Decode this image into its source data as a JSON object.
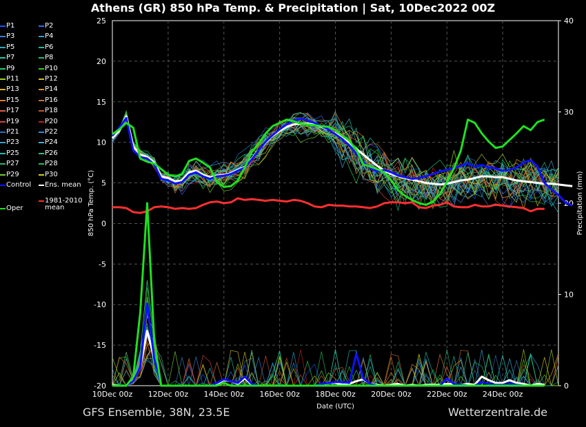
{
  "title": "Athens  (GR)  850 hPa Temp. & Precipitation | Sat, 10Dec2022 00Z",
  "footer": {
    "left": "GFS Ensemble, 38N, 23.5E",
    "right": "Wetterzentrale.de"
  },
  "legend": [
    {
      "label": "P1",
      "color": "#1f4fff"
    },
    {
      "label": "P2",
      "color": "#2a6bff"
    },
    {
      "label": "P3",
      "color": "#3a7fd0"
    },
    {
      "label": "P4",
      "color": "#2fa0d8"
    },
    {
      "label": "P5",
      "color": "#22b0c0"
    },
    {
      "label": "P6",
      "color": "#1fc0a0"
    },
    {
      "label": "P7",
      "color": "#20c8b0"
    },
    {
      "label": "P8",
      "color": "#18c080"
    },
    {
      "label": "P9",
      "color": "#20d070"
    },
    {
      "label": "P10",
      "color": "#30d020"
    },
    {
      "label": "P11",
      "color": "#a0d020"
    },
    {
      "label": "P12",
      "color": "#d0c020"
    },
    {
      "label": "P13",
      "color": "#e0b020"
    },
    {
      "label": "P14",
      "color": "#e09020"
    },
    {
      "label": "P15",
      "color": "#e08030"
    },
    {
      "label": "P16",
      "color": "#d07030"
    },
    {
      "label": "P17",
      "color": "#e06040"
    },
    {
      "label": "P18",
      "color": "#d05030"
    },
    {
      "label": "P19",
      "color": "#e04040"
    },
    {
      "label": "P20",
      "color": "#c02020"
    },
    {
      "label": "P21",
      "color": "#3070c0"
    },
    {
      "label": "P22",
      "color": "#3090e0"
    },
    {
      "label": "P23",
      "color": "#40a0d0"
    },
    {
      "label": "P24",
      "color": "#40b0e0"
    },
    {
      "label": "P25",
      "color": "#20c0b0"
    },
    {
      "label": "P26",
      "color": "#30c090"
    },
    {
      "label": "P27",
      "color": "#30b070"
    },
    {
      "label": "P28",
      "color": "#20c060"
    },
    {
      "label": "P29",
      "color": "#70d030"
    },
    {
      "label": "P30",
      "color": "#d0d020"
    },
    {
      "label": "Control",
      "color": "#1010ff"
    },
    {
      "label": "Ens. mean",
      "color": "#ffffff"
    },
    {
      "label": "Oper",
      "color": "#20e020"
    },
    {
      "label": "1981-2010\nmean",
      "color": "#ff3030"
    }
  ],
  "chart_data": {
    "type": "line",
    "ylabel": "850 hPa Temp. (°C)",
    "y2label": "Precipitation (mm)",
    "xlabel": "Date (UTC)",
    "ylim": [
      -20,
      25
    ],
    "y2lim": [
      0,
      40
    ],
    "yticks": [
      -20,
      -15,
      -10,
      -5,
      0,
      5,
      10,
      15,
      20,
      25
    ],
    "y2ticks": [
      0,
      10,
      20,
      30,
      40
    ],
    "xticks": [
      "10Dec 00z",
      "12Dec 00z",
      "14Dec 00z",
      "16Dec 00z",
      "18Dec 00z",
      "20Dec 00z",
      "22Dec 00z",
      "24Dec 00z"
    ],
    "x_hours_per_step": 6,
    "grid": true,
    "series_temp": [
      {
        "name": "Ens. mean",
        "color": "#ffffff",
        "width": 3,
        "values": [
          10.5,
          11.5,
          13.2,
          9.5,
          8.5,
          8.2,
          7.5,
          5.8,
          5.6,
          5.2,
          5.3,
          6.3,
          6.5,
          6.0,
          5.7,
          5.9,
          6.0,
          6.2,
          6.6,
          7.0,
          8.0,
          9.0,
          10.0,
          10.8,
          11.4,
          11.9,
          12.2,
          12.3,
          12.3,
          12.2,
          11.9,
          11.6,
          11.1,
          10.6,
          10.0,
          9.2,
          8.5,
          7.8,
          7.1,
          6.5,
          6.1,
          5.8,
          5.6,
          5.4,
          5.2,
          5.0,
          4.9,
          4.8,
          4.9,
          5.1,
          5.3,
          5.4,
          5.6,
          5.8,
          5.8,
          5.7,
          5.7,
          5.5,
          5.3,
          5.2,
          5.1,
          5.0,
          4.9,
          4.9,
          4.8,
          4.7,
          4.6
        ]
      },
      {
        "name": "Control",
        "color": "#1010ff",
        "width": 3,
        "values": [
          10.8,
          11.8,
          13.0,
          9.0,
          8.2,
          8.0,
          7.3,
          5.5,
          5.3,
          4.9,
          5.1,
          6.0,
          6.3,
          5.8,
          5.5,
          5.8,
          5.9,
          6.1,
          6.5,
          6.9,
          7.9,
          9.0,
          10.1,
          10.9,
          11.6,
          12.2,
          12.7,
          12.9,
          12.7,
          12.4,
          12.0,
          11.6,
          11.0,
          10.4,
          9.6,
          8.6,
          7.6,
          6.8,
          6.4,
          6.6,
          6.3,
          5.9,
          5.7,
          5.5,
          5.6,
          5.8,
          6.1,
          6.4,
          6.6,
          6.8,
          7.1,
          7.4,
          7.0,
          7.2,
          6.9,
          6.8,
          6.5,
          6.6,
          6.9,
          7.5,
          7.8,
          7.0,
          5.0,
          4.2,
          3.5,
          2.6,
          2.2
        ]
      },
      {
        "name": "Oper",
        "color": "#20e020",
        "width": 3,
        "values": [
          11.0,
          11.6,
          12.4,
          11.8,
          8.0,
          7.6,
          7.4,
          6.7,
          6.0,
          5.8,
          6.1,
          7.7,
          8.0,
          7.5,
          6.9,
          5.1,
          4.5,
          4.6,
          5.3,
          6.9,
          8.8,
          9.9,
          11.1,
          12.0,
          12.4,
          12.8,
          12.6,
          12.3,
          12.2,
          12.1,
          12.0,
          11.9,
          11.5,
          10.8,
          10.2,
          9.1,
          7.3,
          7.0,
          6.7,
          6.3,
          5.3,
          4.1,
          3.4,
          2.9,
          2.5,
          2.3,
          2.7,
          3.6,
          5.1,
          6.8,
          9.0,
          12.8,
          12.4,
          11.1,
          10.1,
          9.3,
          9.5,
          10.3,
          11.1,
          12.0,
          11.5,
          12.5,
          12.8
        ]
      },
      {
        "name": "1981-2010 mean",
        "color": "#ff3030",
        "width": 3,
        "values": [
          2.0,
          2.0,
          1.9,
          1.4,
          1.3,
          1.5,
          2.0,
          2.1,
          2.0,
          1.8,
          1.9,
          1.8,
          1.9,
          2.3,
          2.6,
          2.7,
          2.5,
          2.6,
          3.1,
          2.9,
          3.0,
          2.9,
          2.8,
          2.9,
          2.8,
          2.7,
          2.9,
          2.8,
          2.5,
          2.1,
          2.0,
          2.3,
          2.2,
          2.2,
          2.1,
          2.1,
          2.0,
          1.9,
          2.1,
          2.5,
          2.6,
          2.6,
          2.5,
          2.6,
          2.0,
          1.9,
          2.2,
          2.3,
          2.6,
          2.1,
          2.0,
          2.0,
          2.3,
          2.1,
          2.1,
          2.3,
          2.2,
          2.1,
          2.0,
          1.9,
          1.5,
          1.8,
          1.8
        ]
      }
    ],
    "series_precip": [
      {
        "name": "Ens. mean",
        "color": "#ffffff",
        "width": 3,
        "values": [
          0.1,
          0,
          0,
          0.5,
          2,
          6,
          3,
          0,
          0,
          0,
          0,
          0,
          0,
          0,
          0,
          0.2,
          0.6,
          0.5,
          0.2,
          0.8,
          0.1,
          0,
          0,
          0,
          0,
          0,
          0,
          0,
          0,
          0,
          0.1,
          0.3,
          0.3,
          0.1,
          0.2,
          0.5,
          0.7,
          0.2,
          0.1,
          0,
          0.1,
          0.2,
          0,
          0.1,
          0,
          0.1,
          0.1,
          0.1,
          0.2,
          0.2,
          0.1,
          0.2,
          0.1,
          1.0,
          0.6,
          0.3,
          0.3,
          0.6,
          0.3,
          0.2,
          0,
          0.2,
          0.1
        ]
      },
      {
        "name": "Control",
        "color": "#1010ff",
        "width": 3,
        "values": [
          0,
          0,
          0,
          0.5,
          2,
          9,
          3,
          0,
          0,
          0,
          0,
          0,
          0,
          0,
          0,
          0.3,
          0.7,
          0.5,
          0.3,
          1.0,
          0.2,
          0,
          0,
          0,
          0,
          0,
          0,
          0,
          0,
          0,
          0.2,
          0.3,
          0.4,
          0.4,
          0.3,
          3.5,
          0.8,
          0.2,
          0,
          0,
          0,
          0,
          0,
          0,
          0,
          0,
          0,
          0,
          0.8,
          0.2,
          0.1,
          0,
          0,
          0.4,
          0.2,
          0.1,
          0.1,
          0.2,
          0.1,
          0,
          0,
          0,
          0
        ]
      },
      {
        "name": "Oper",
        "color": "#20e020",
        "width": 3,
        "values": [
          0,
          0,
          0,
          1,
          8,
          20,
          5,
          0,
          0,
          0,
          0,
          0,
          0,
          0,
          0,
          0,
          0.3,
          0,
          0,
          0,
          0,
          0,
          0,
          0,
          0,
          0,
          0,
          0,
          0,
          0,
          0,
          0,
          0,
          0,
          0,
          0,
          0,
          0,
          0,
          0,
          0,
          0,
          0,
          0,
          0,
          0,
          0,
          0,
          0,
          0,
          0,
          0,
          0,
          0,
          0,
          0,
          0,
          0,
          0,
          0,
          0,
          0,
          0
        ]
      }
    ]
  }
}
